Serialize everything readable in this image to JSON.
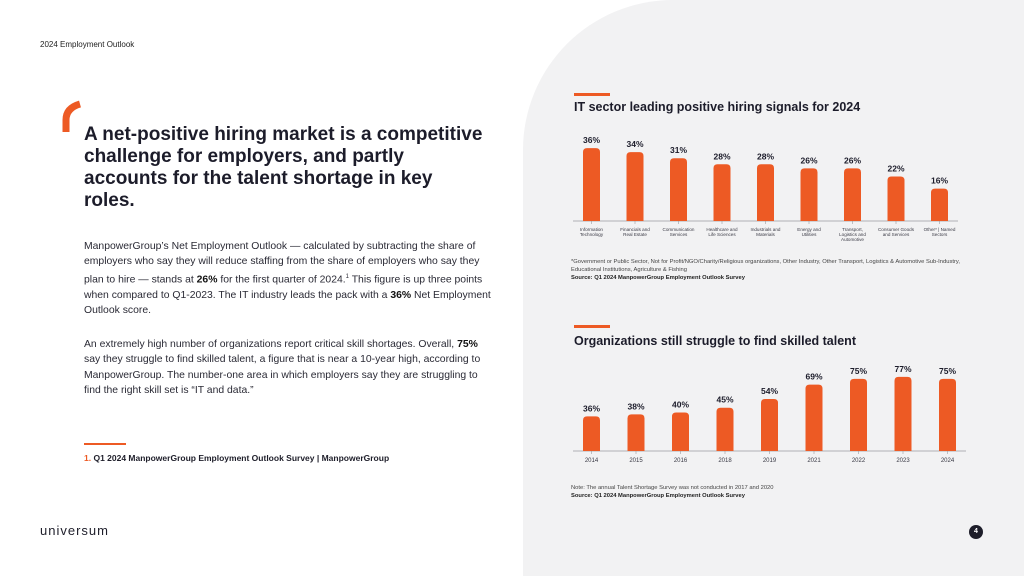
{
  "header": {
    "title": "2024 Employment Outlook"
  },
  "headline": "A net-positive hiring market is a competitive challenge for employers, and partly accounts for the talent shortage in key roles.",
  "paragraph1": {
    "before": "ManpowerGroup’s Net Employment Outlook — calculated by subtracting the share of employers who say they will reduce staffing from the share of employers who say they plan to hire — stands at ",
    "highlight1": "26%",
    "middle": " for the first quarter of 2024.",
    "sup": "1",
    "after": " This figure is up three points when compared to Q1-2023. The IT industry leads the pack with a ",
    "highlight2": "36%",
    "end": " Net Employment Outlook score."
  },
  "paragraph2": {
    "before": "An extremely high number of organizations report critical skill shortages. Overall, ",
    "highlight": "75%",
    "after": " say they struggle to find skilled talent, a figure that is near a 10-year high, according to ManpowerGroup. The number-one area in which employers say they are struggling to find the right skill set is “IT and data.”"
  },
  "footnote": {
    "number": "1.",
    "text": " Q1 2024 ManpowerGroup Employment Outlook Survey | ManpowerGroup"
  },
  "logo": "universum",
  "page_number": "4",
  "accent_color": "#ed5a24",
  "chart1_note": {
    "text": "*Government or Public Sector, Not for Profit/NGO/Charity/Religious organizations, Other Industry, Other Transport, Logistics & Automotive Sub-Industry, Educational Institutions, Agriculture & Fishing",
    "source": "Source: Q1 2024 ManpowerGroup Employment Outlook Survey"
  },
  "chart2_note": {
    "text": "Note: The annual Talent Shortage Survey was not conducted in 2017 and 2020",
    "source": "Source: Q1 2024 ManpowerGroup Employment Outlook Survey"
  },
  "chart_data": [
    {
      "type": "bar",
      "title": "IT sector leading positive hiring signals for 2024",
      "categories": [
        [
          "Information",
          "Technology"
        ],
        [
          "Financials and",
          "Real Estate"
        ],
        [
          "Communication",
          "Services"
        ],
        [
          "Healthcare and",
          "Life Sciences"
        ],
        [
          "Industrials and",
          "Materials"
        ],
        [
          "Energy and",
          "Utilities"
        ],
        [
          "Transport,",
          "Logistics and",
          "Automotive"
        ],
        [
          "Consumer Goods",
          "and Services"
        ],
        [
          "Other* | Named",
          "Sectors"
        ]
      ],
      "values": [
        36,
        34,
        31,
        28,
        28,
        26,
        26,
        22,
        16
      ],
      "labels": [
        "36%",
        "34%",
        "31%",
        "28%",
        "28%",
        "26%",
        "26%",
        "22%",
        "16%"
      ],
      "ylim": [
        0,
        40
      ],
      "color": "#ed5a24"
    },
    {
      "type": "bar",
      "title": "Organizations still struggle to find skilled talent",
      "categories": [
        "2014",
        "2015",
        "2016",
        "2018",
        "2019",
        "2021",
        "2022",
        "2023",
        "2024"
      ],
      "values": [
        36,
        38,
        40,
        45,
        54,
        69,
        75,
        77,
        75
      ],
      "labels": [
        "36%",
        "38%",
        "40%",
        "45%",
        "54%",
        "69%",
        "75%",
        "77%",
        "75%"
      ],
      "ylim": [
        0,
        80
      ],
      "color": "#ed5a24"
    }
  ]
}
